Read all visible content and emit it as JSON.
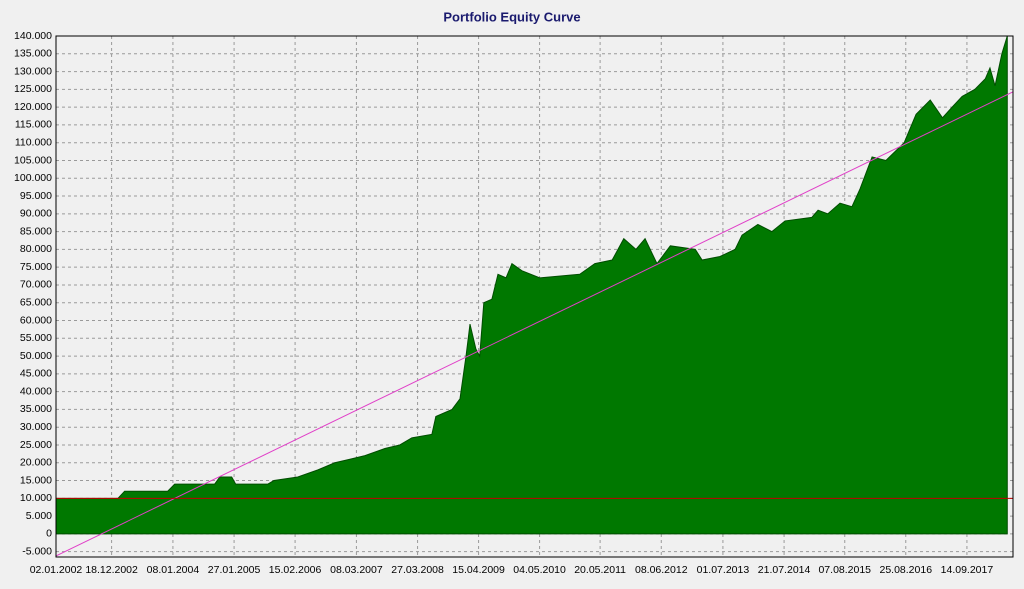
{
  "chart_data": {
    "type": "area",
    "title": "Portfolio Equity Curve",
    "grid": true,
    "xlim": [
      "2002-01-02",
      "2018-07-01"
    ],
    "ylim": [
      -6500,
      140000
    ],
    "xticks": [
      {
        "value": "2002-01-02",
        "label": "02.01.2002"
      },
      {
        "value": "2002-12-18",
        "label": "18.12.2002"
      },
      {
        "value": "2004-01-08",
        "label": "08.01.2004"
      },
      {
        "value": "2005-01-27",
        "label": "27.01.2005"
      },
      {
        "value": "2006-02-15",
        "label": "15.02.2006"
      },
      {
        "value": "2007-03-08",
        "label": "08.03.2007"
      },
      {
        "value": "2008-03-27",
        "label": "27.03.2008"
      },
      {
        "value": "2009-04-15",
        "label": "15.04.2009"
      },
      {
        "value": "2010-05-04",
        "label": "04.05.2010"
      },
      {
        "value": "2011-05-20",
        "label": "20.05.2011"
      },
      {
        "value": "2012-06-08",
        "label": "08.06.2012"
      },
      {
        "value": "2013-07-01",
        "label": "01.07.2013"
      },
      {
        "value": "2014-07-21",
        "label": "21.07.2014"
      },
      {
        "value": "2015-08-07",
        "label": "07.08.2015"
      },
      {
        "value": "2016-08-25",
        "label": "25.08.2016"
      },
      {
        "value": "2017-09-14",
        "label": "14.09.2017"
      }
    ],
    "yticks": [
      {
        "value": -5000,
        "label": "-5.000"
      },
      0,
      {
        "value": 5000,
        "label": "5.000"
      },
      {
        "value": 10000,
        "label": "10.000"
      },
      {
        "value": 15000,
        "label": "15.000"
      },
      {
        "value": 20000,
        "label": "20.000"
      },
      {
        "value": 25000,
        "label": "25.000"
      },
      {
        "value": 30000,
        "label": "30.000"
      },
      {
        "value": 35000,
        "label": "35.000"
      },
      {
        "value": 40000,
        "label": "40.000"
      },
      {
        "value": 45000,
        "label": "45.000"
      },
      {
        "value": 50000,
        "label": "50.000"
      },
      {
        "value": 55000,
        "label": "55.000"
      },
      {
        "value": 60000,
        "label": "60.000"
      },
      {
        "value": 65000,
        "label": "65.000"
      },
      {
        "value": 70000,
        "label": "70.000"
      },
      {
        "value": 75000,
        "label": "75.000"
      },
      {
        "value": 80000,
        "label": "80.000"
      },
      {
        "value": 85000,
        "label": "85.000"
      },
      {
        "value": 90000,
        "label": "90.000"
      },
      {
        "value": 95000,
        "label": "95.000"
      },
      {
        "value": 100000,
        "label": "100.000"
      },
      {
        "value": 105000,
        "label": "105.000"
      },
      {
        "value": 110000,
        "label": "110.000"
      },
      {
        "value": 115000,
        "label": "115.000"
      },
      {
        "value": 120000,
        "label": "120.000"
      },
      {
        "value": 125000,
        "label": "125.000"
      },
      {
        "value": 130000,
        "label": "130.000"
      },
      {
        "value": 135000,
        "label": "135.000"
      },
      {
        "value": 140000,
        "label": "140.000"
      }
    ],
    "series": [
      {
        "color": "#007800",
        "kind": "area",
        "x": [
          "2002-01-02",
          "2003-01-27",
          "2003-03-10",
          "2003-12-06",
          "2004-01-19",
          "2004-09-27",
          "2004-10-29",
          "2005-01-12",
          "2005-02-06",
          "2005-08-28",
          "2005-10-05",
          "2006-03-04",
          "2006-07-09",
          "2006-10-23",
          "2007-01-26",
          "2007-05-01",
          "2007-09-03",
          "2007-12-06",
          "2008-02-20",
          "2008-06-25",
          "2008-07-20",
          "2008-10-30",
          "2008-12-19",
          "2009-01-26",
          "2009-02-20",
          "2009-03-29",
          "2009-04-22",
          "2009-05-18",
          "2009-07-08",
          "2009-08-15",
          "2009-10-05",
          "2009-11-11",
          "2010-01-12",
          "2010-05-05",
          "2011-01-12",
          "2011-04-17",
          "2011-08-04",
          "2011-10-16",
          "2012-01-01",
          "2012-02-27",
          "2012-05-12",
          "2012-08-04",
          "2013-01-08",
          "2013-02-20",
          "2013-06-13",
          "2013-09-16",
          "2013-10-29",
          "2014-02-06",
          "2014-05-05",
          "2014-07-27",
          "2015-01-12",
          "2015-02-20",
          "2015-04-22",
          "2015-07-08",
          "2015-09-21",
          "2015-11-11",
          "2016-01-26",
          "2016-04-22",
          "2016-08-15",
          "2016-10-29",
          "2017-01-26",
          "2017-04-13",
          "2017-06-13",
          "2017-08-15",
          "2017-11-03",
          "2018-01-08",
          "2018-02-06",
          "2018-03-10",
          "2018-04-22",
          "2018-05-26"
        ],
        "values": [
          10000,
          10000,
          12000,
          12000,
          14000,
          14000,
          16000,
          16000,
          14000,
          14000,
          15000,
          16000,
          18000,
          20000,
          21000,
          22000,
          24000,
          25000,
          27000,
          28000,
          33000,
          35000,
          38000,
          50000,
          59000,
          52000,
          50000,
          65000,
          66000,
          73000,
          72000,
          76000,
          74000,
          72000,
          73000,
          76000,
          77000,
          83000,
          80000,
          83000,
          76000,
          81000,
          80000,
          77000,
          78000,
          80000,
          84000,
          87000,
          85000,
          88000,
          89000,
          91000,
          90000,
          93000,
          92000,
          97000,
          106000,
          105000,
          110000,
          118000,
          122000,
          117000,
          120000,
          123000,
          125000,
          128000,
          131000,
          126000,
          135000,
          140000
        ]
      },
      {
        "color": "#e040c8",
        "kind": "line",
        "x": [
          "2002-01-02",
          "2018-07-01"
        ],
        "values": [
          -6200,
          124300
        ]
      },
      {
        "color": "#c00000",
        "kind": "line",
        "x": [
          "2002-01-02",
          "2018-07-01"
        ],
        "values": [
          10000,
          10000
        ]
      }
    ]
  }
}
